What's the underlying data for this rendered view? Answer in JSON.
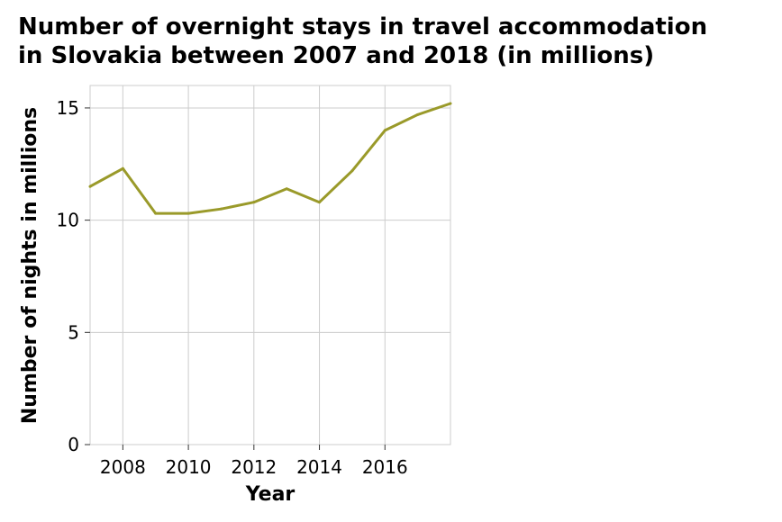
{
  "chart_data": {
    "type": "line",
    "title_lines": [
      "Number of overnight stays in travel accommodation",
      "in Slovakia between 2007 and 2018 (in millions)"
    ],
    "xlabel": "Year",
    "ylabel": "Number of nights in millions",
    "xlim": [
      2007,
      2018
    ],
    "ylim": [
      0,
      16
    ],
    "x_ticks": [
      2008,
      2010,
      2012,
      2014,
      2016
    ],
    "y_ticks": [
      0,
      5,
      10,
      15
    ],
    "grid": true,
    "line_color": "#9a9a2a",
    "series": [
      {
        "x": [
          2007,
          2008,
          2009,
          2010,
          2011,
          2012,
          2013,
          2014,
          2015,
          2016,
          2017,
          2018
        ],
        "values": [
          11.5,
          12.3,
          10.3,
          10.3,
          10.5,
          10.8,
          11.4,
          10.8,
          12.2,
          14.0,
          14.7,
          15.2
        ]
      }
    ]
  }
}
